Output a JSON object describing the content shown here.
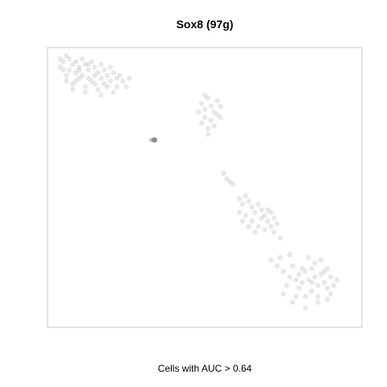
{
  "chart_data": {
    "type": "scatter",
    "title": "Sox8 (97g)",
    "xlabel": "Cells with AUC > 0.64",
    "ylabel": "",
    "xlim": [
      0,
      100
    ],
    "ylim": [
      0,
      100
    ],
    "grid": false,
    "legend": "none",
    "point_color": "#bdbdbd",
    "highlight_color": "#7a7a7a",
    "frame_color": "#c8c8c8",
    "series": [
      {
        "values": [
          [
            4,
            96
          ],
          [
            5,
            95
          ],
          [
            6,
            97
          ],
          [
            7,
            96
          ],
          [
            8,
            94
          ],
          [
            9,
            95
          ],
          [
            10,
            93
          ],
          [
            11,
            96
          ],
          [
            12,
            94
          ],
          [
            13,
            92
          ],
          [
            14,
            95
          ],
          [
            15,
            93
          ],
          [
            16,
            91
          ],
          [
            17,
            94
          ],
          [
            18,
            92
          ],
          [
            19,
            90
          ],
          [
            20,
            93
          ],
          [
            21,
            91
          ],
          [
            22,
            89
          ],
          [
            18,
            87
          ],
          [
            14,
            88
          ],
          [
            10,
            89
          ],
          [
            6,
            90
          ],
          [
            7,
            92
          ],
          [
            9,
            91
          ],
          [
            11,
            90
          ],
          [
            13,
            89
          ],
          [
            15,
            87
          ],
          [
            17,
            89
          ],
          [
            19,
            86
          ],
          [
            16,
            85
          ],
          [
            12,
            86
          ],
          [
            8,
            87
          ],
          [
            5,
            92
          ],
          [
            20,
            88
          ],
          [
            22,
            86
          ],
          [
            24,
            88
          ],
          [
            26,
            89
          ],
          [
            21,
            84
          ],
          [
            17,
            83
          ],
          [
            12,
            84
          ],
          [
            8,
            85
          ],
          [
            6,
            88
          ],
          [
            23,
            90
          ],
          [
            25,
            86
          ],
          [
            15,
            90
          ],
          [
            10,
            92
          ],
          [
            13,
            94
          ],
          [
            4,
            93
          ],
          [
            9,
            88
          ],
          [
            49,
            80
          ],
          [
            50,
            78
          ],
          [
            51,
            82
          ],
          [
            52,
            79
          ],
          [
            53,
            77
          ],
          [
            50,
            75
          ],
          [
            52,
            74
          ],
          [
            54,
            76
          ],
          [
            55,
            79
          ],
          [
            49,
            73
          ],
          [
            51,
            71
          ],
          [
            53,
            72
          ],
          [
            55,
            75
          ],
          [
            50,
            83
          ],
          [
            48,
            77
          ],
          [
            54,
            81
          ],
          [
            51,
            69
          ],
          [
            56,
            55
          ],
          [
            57,
            53
          ],
          [
            58,
            52
          ],
          [
            59,
            51
          ],
          [
            61,
            46
          ],
          [
            62,
            44
          ],
          [
            63,
            47
          ],
          [
            64,
            45
          ],
          [
            65,
            43
          ],
          [
            66,
            41
          ],
          [
            67,
            44
          ],
          [
            68,
            42
          ],
          [
            69,
            40
          ],
          [
            70,
            38
          ],
          [
            71,
            41
          ],
          [
            72,
            39
          ],
          [
            63,
            40
          ],
          [
            65,
            38
          ],
          [
            67,
            36
          ],
          [
            69,
            35
          ],
          [
            71,
            36
          ],
          [
            64,
            36
          ],
          [
            62,
            38
          ],
          [
            66,
            34
          ],
          [
            68,
            39
          ],
          [
            70,
            42
          ],
          [
            73,
            37
          ],
          [
            72,
            34
          ],
          [
            74,
            32
          ],
          [
            61,
            41
          ],
          [
            73,
            22
          ],
          [
            75,
            20
          ],
          [
            77,
            18
          ],
          [
            78,
            22
          ],
          [
            80,
            19
          ],
          [
            81,
            16
          ],
          [
            82,
            20
          ],
          [
            83,
            17
          ],
          [
            84,
            21
          ],
          [
            85,
            18
          ],
          [
            86,
            15
          ],
          [
            87,
            19
          ],
          [
            88,
            16
          ],
          [
            89,
            14
          ],
          [
            90,
            18
          ],
          [
            84,
            13
          ],
          [
            82,
            11
          ],
          [
            86,
            11
          ],
          [
            80,
            14
          ],
          [
            88,
            20
          ],
          [
            91,
            15
          ],
          [
            85,
            23
          ],
          [
            83,
            25
          ],
          [
            87,
            24
          ],
          [
            89,
            21
          ],
          [
            81,
            21
          ],
          [
            79,
            17
          ],
          [
            75,
            12
          ],
          [
            78,
            9
          ],
          [
            82,
            7
          ],
          [
            86,
            9
          ],
          [
            90,
            12
          ],
          [
            92,
            17
          ],
          [
            71,
            24
          ],
          [
            74,
            25
          ],
          [
            77,
            26
          ],
          [
            89,
            10
          ],
          [
            84,
            16
          ],
          [
            79,
            11
          ],
          [
            76,
            15
          ]
        ]
      },
      {
        "values": [
          [
            33,
            67
          ],
          [
            34,
            67
          ]
        ]
      }
    ]
  }
}
